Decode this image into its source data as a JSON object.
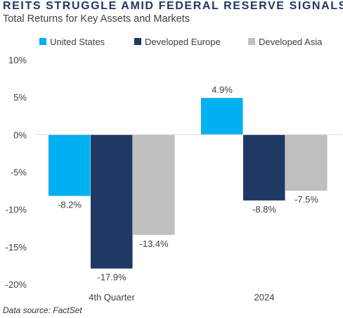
{
  "title": "REITS STRUGGLE AMID FEDERAL RESERVE SIGNALS",
  "subtitle": "Total Returns for Key Assets and Markets",
  "source": "Data source: FactSet",
  "colors": {
    "us": "#00b0f0",
    "europe": "#1f3864",
    "asia": "#bfbfbf",
    "title": "#1f3864",
    "grid": "#d9d9d9",
    "text": "#404040"
  },
  "chart_data": {
    "type": "bar",
    "title": "REITS STRUGGLE AMID FEDERAL RESERVE SIGNALS",
    "subtitle": "Total Returns for Key Assets and Markets",
    "categories": [
      "4th Quarter",
      "2024"
    ],
    "series": [
      {
        "name": "United States",
        "color": "#00b0f0",
        "values": [
          -8.2,
          4.9
        ],
        "labels": [
          "-8.2%",
          "4.9%"
        ]
      },
      {
        "name": "Developed Europe",
        "color": "#1f3864",
        "values": [
          -17.9,
          -8.8
        ],
        "labels": [
          "-17.9%",
          "-8.8%"
        ]
      },
      {
        "name": "Developed Asia",
        "color": "#bfbfbf",
        "values": [
          -13.4,
          -7.5
        ],
        "labels": [
          "-13.4%",
          "-7.5%"
        ]
      }
    ],
    "ylim": [
      -20,
      10
    ],
    "yticks": [
      10,
      5,
      0,
      -5,
      -10,
      -15,
      -20
    ],
    "ytick_labels": [
      "10%",
      "5%",
      "0%",
      "-5%",
      "-10%",
      "-15%",
      "-20%"
    ],
    "legend_position": "top",
    "grid": false,
    "xlabel": "",
    "ylabel": ""
  }
}
